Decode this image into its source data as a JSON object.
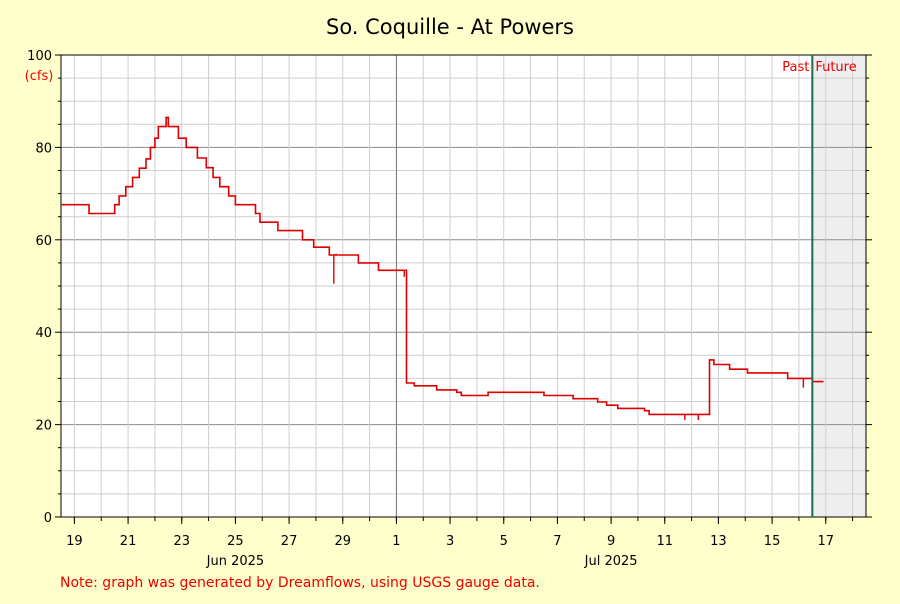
{
  "chart_data": {
    "type": "line",
    "title": "So. Coquille - At Powers",
    "ylabel": "(cfs)",
    "xlabel": "",
    "ylim": [
      0,
      100
    ],
    "y_ticks": [
      0,
      20,
      40,
      60,
      80,
      100
    ],
    "x_start": "2025-06-18T12:00",
    "x_end": "2025-07-18T12:00",
    "x_ticks": [
      {
        "label": "19",
        "date": "2025-06-19"
      },
      {
        "label": "21",
        "date": "2025-06-21"
      },
      {
        "label": "23",
        "date": "2025-06-23"
      },
      {
        "label": "25",
        "date": "2025-06-25"
      },
      {
        "label": "27",
        "date": "2025-06-27"
      },
      {
        "label": "29",
        "date": "2025-06-29"
      },
      {
        "label": "1",
        "date": "2025-07-01"
      },
      {
        "label": "3",
        "date": "2025-07-03"
      },
      {
        "label": "5",
        "date": "2025-07-05"
      },
      {
        "label": "7",
        "date": "2025-07-07"
      },
      {
        "label": "9",
        "date": "2025-07-09"
      },
      {
        "label": "11",
        "date": "2025-07-11"
      },
      {
        "label": "13",
        "date": "2025-07-13"
      },
      {
        "label": "15",
        "date": "2025-07-15"
      },
      {
        "label": "17",
        "date": "2025-07-17"
      }
    ],
    "month_labels": [
      {
        "label": "Jun 2025",
        "date": "2025-06-25"
      },
      {
        "label": "Jul 2025",
        "date": "2025-07-09"
      }
    ],
    "month_boundary": "2025-07-01",
    "now_date": "2025-07-16T12:00",
    "past_label": "Past",
    "future_label": "Future",
    "grid": true,
    "colors": {
      "line": "#dd0000",
      "now_line": "#1f6b4a",
      "future_fill": "#eeeeee",
      "background": "#ffffcc",
      "label_red": "#ee0000"
    },
    "series": [
      {
        "points": [
          [
            "2025-06-18T12:00",
            67.6
          ],
          [
            "2025-06-19T12:00",
            67.6
          ],
          [
            "2025-06-19T13:00",
            65.7
          ],
          [
            "2025-06-20T11:00",
            65.7
          ],
          [
            "2025-06-20T12:00",
            67.6
          ],
          [
            "2025-06-20T16:00",
            69.5
          ],
          [
            "2025-06-20T22:00",
            71.5
          ],
          [
            "2025-06-21T04:00",
            73.5
          ],
          [
            "2025-06-21T10:00",
            75.5
          ],
          [
            "2025-06-21T16:00",
            77.5
          ],
          [
            "2025-06-21T20:00",
            80.0
          ],
          [
            "2025-06-22T00:00",
            82.0
          ],
          [
            "2025-06-22T03:00",
            84.5
          ],
          [
            "2025-06-22T10:00",
            86.5
          ],
          [
            "2025-06-22T12:00",
            84.5
          ],
          [
            "2025-06-22T20:00",
            84.5
          ],
          [
            "2025-06-22T21:00",
            82.0
          ],
          [
            "2025-06-23T03:00",
            82.0
          ],
          [
            "2025-06-23T04:00",
            80.0
          ],
          [
            "2025-06-23T12:00",
            80.0
          ],
          [
            "2025-06-23T14:00",
            77.7
          ],
          [
            "2025-06-23T22:00",
            75.6
          ],
          [
            "2025-06-24T04:00",
            73.5
          ],
          [
            "2025-06-24T10:00",
            71.5
          ],
          [
            "2025-06-24T18:00",
            69.5
          ],
          [
            "2025-06-25T00:00",
            67.6
          ],
          [
            "2025-06-25T18:00",
            65.7
          ],
          [
            "2025-06-25T22:00",
            63.8
          ],
          [
            "2025-06-26T12:00",
            63.8
          ],
          [
            "2025-06-26T14:00",
            62.0
          ],
          [
            "2025-06-27T10:00",
            62.0
          ],
          [
            "2025-06-27T12:00",
            60.0
          ],
          [
            "2025-06-27T22:00",
            58.4
          ],
          [
            "2025-06-28T10:00",
            58.4
          ],
          [
            "2025-06-28T12:00",
            56.7
          ],
          [
            "2025-06-29T12:00",
            56.7
          ],
          [
            "2025-06-29T14:00",
            55.0
          ],
          [
            "2025-06-30T06:00",
            55.0
          ],
          [
            "2025-06-30T08:00",
            53.4
          ],
          [
            "2025-07-01T08:00",
            53.4
          ],
          [
            "2025-07-01T09:00",
            29.0
          ],
          [
            "2025-07-01T16:00",
            28.4
          ],
          [
            "2025-07-02T12:00",
            27.5
          ],
          [
            "2025-07-03T06:00",
            27.0
          ],
          [
            "2025-07-03T10:00",
            26.3
          ],
          [
            "2025-07-04T08:00",
            26.3
          ],
          [
            "2025-07-04T10:00",
            27.0
          ],
          [
            "2025-07-06T08:00",
            27.0
          ],
          [
            "2025-07-06T12:00",
            26.3
          ],
          [
            "2025-07-07T12:00",
            26.3
          ],
          [
            "2025-07-07T14:00",
            25.6
          ],
          [
            "2025-07-08T12:00",
            24.9
          ],
          [
            "2025-07-08T20:00",
            24.2
          ],
          [
            "2025-07-09T06:00",
            23.5
          ],
          [
            "2025-07-10T06:00",
            23.0
          ],
          [
            "2025-07-10T10:00",
            22.2
          ],
          [
            "2025-07-12T14:00",
            22.2
          ],
          [
            "2025-07-12T16:00",
            34.0
          ],
          [
            "2025-07-12T20:00",
            33.0
          ],
          [
            "2025-07-13T10:00",
            32.0
          ],
          [
            "2025-07-14T00:00",
            32.0
          ],
          [
            "2025-07-14T02:00",
            31.2
          ],
          [
            "2025-07-15T12:00",
            31.2
          ],
          [
            "2025-07-15T14:00",
            30.0
          ],
          [
            "2025-07-16T12:00",
            29.3
          ],
          [
            "2025-07-16T22:00",
            29.3
          ]
        ],
        "spikes": [
          [
            "2025-06-28T16:00",
            50.5
          ],
          [
            "2025-06-28T18:00",
            57.0
          ],
          [
            "2025-07-01T07:00",
            52.0
          ],
          [
            "2025-07-11T18:00",
            21.0
          ],
          [
            "2025-07-12T06:00",
            21.0
          ],
          [
            "2025-07-16T04:00",
            28.0
          ]
        ]
      }
    ]
  },
  "footer_note": "Note: graph was generated by Dreamflows, using USGS gauge data."
}
